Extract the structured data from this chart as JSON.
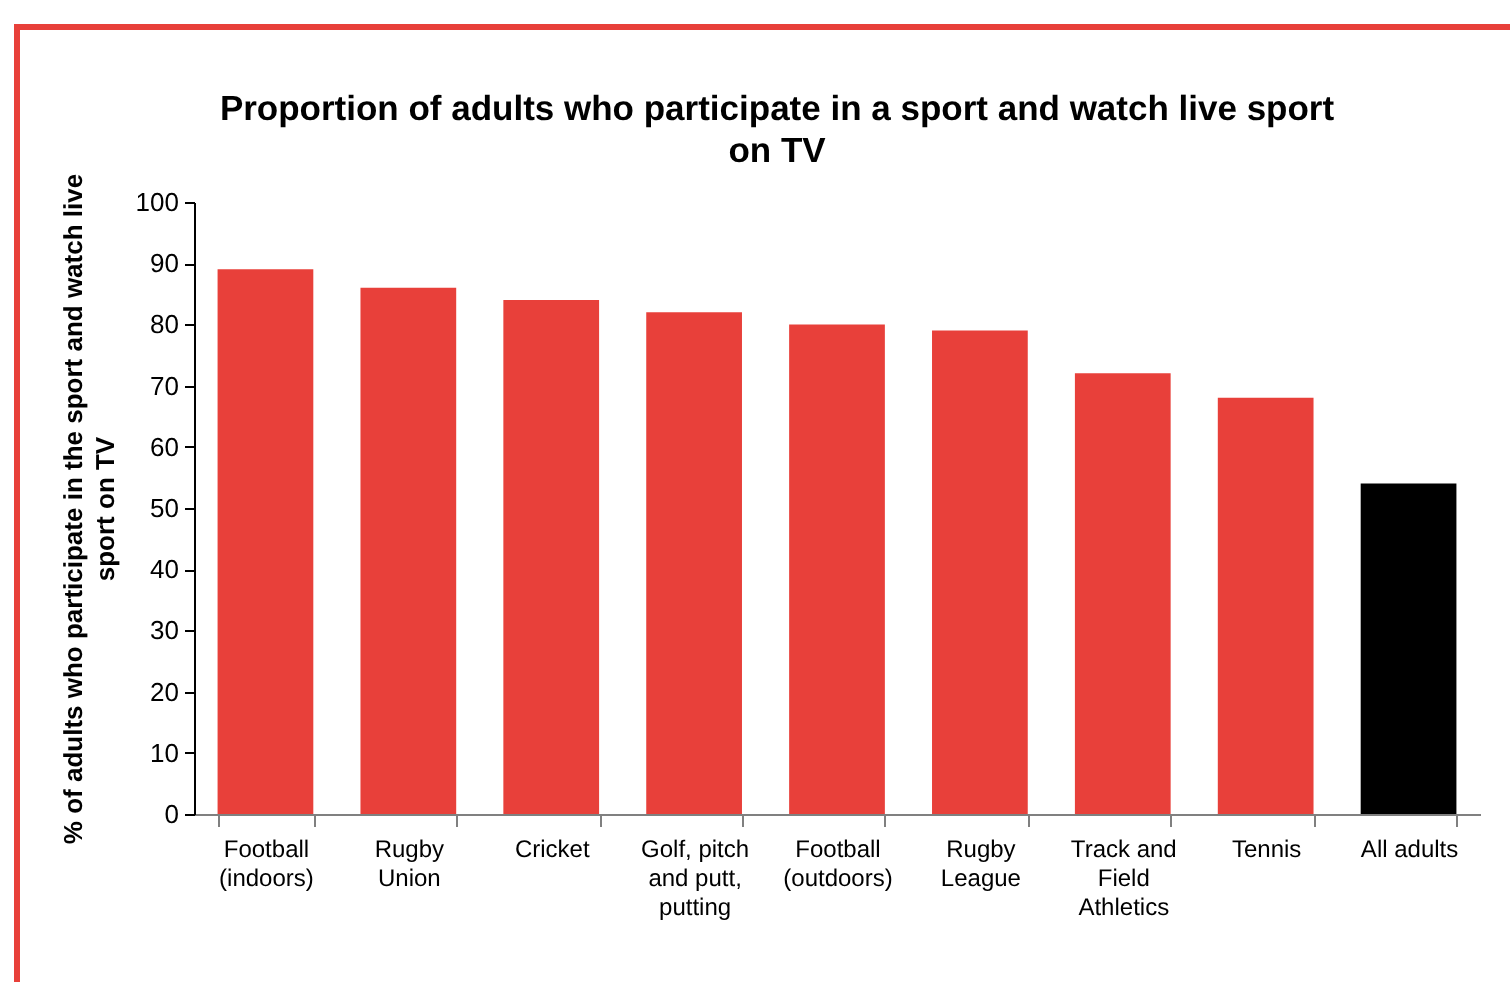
{
  "chart_data": {
    "type": "bar",
    "title": "Proportion of adults who participate in a sport and watch live sport on TV",
    "ylabel": "% of adults who participate in the sport and watch live sport on TV",
    "categories": [
      "Football (indoors)",
      "Rugby Union",
      "Cricket",
      "Golf, pitch and putt, putting",
      "Football (outdoors)",
      "Rugby League",
      "Track and Field Athletics",
      "Tennis",
      "All adults"
    ],
    "values": [
      89,
      86,
      84,
      82,
      80,
      79,
      72,
      68,
      54
    ],
    "colors": [
      "#e8403a",
      "#e8403a",
      "#e8403a",
      "#e8403a",
      "#e8403a",
      "#e8403a",
      "#e8403a",
      "#e8403a",
      "#000000"
    ],
    "ylim": [
      0,
      100
    ],
    "yticks": [
      0,
      10,
      20,
      30,
      40,
      50,
      60,
      70,
      80,
      90,
      100
    ]
  }
}
